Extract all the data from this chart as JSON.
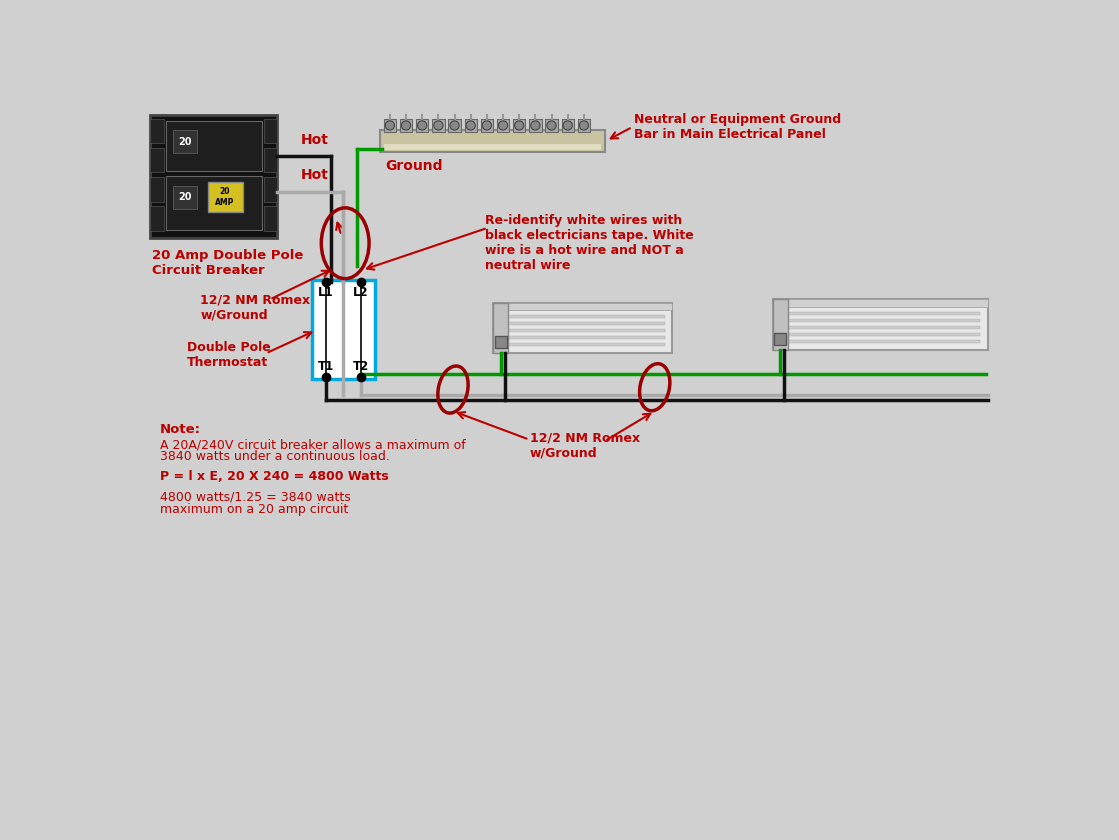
{
  "bg_color": "#d0d0d0",
  "text_color": "#bb0000",
  "wire_black": "#111111",
  "wire_green": "#009900",
  "wire_white": "#c0c0c0",
  "wire_gray": "#aaaaaa",
  "thermostat_fill": "#ffffff",
  "thermostat_edge": "#00aadd",
  "label_breaker": "20 Amp Double Pole\nCircuit Breaker",
  "label_romex1": "12/2 NM Romex\nw/Ground",
  "label_romex2": "12/2 NM Romex\nw/Ground",
  "label_thermostat": "Double Pole\nThermostat",
  "label_hot1": "Hot",
  "label_hot2": "Hot",
  "label_ground": "Ground",
  "label_neutral": "Neutral or Equipment Ground\nBar in Main Electrical Panel",
  "label_reidentify": "Re-identify white wires with\nblack electricians tape. White\nwire is a hot wire and NOT a\nneutral wire",
  "note_title": "Note:",
  "note_line1": "A 20A/240V circuit breaker allows a maximum of",
  "note_line2": "3840 watts under a continuous load.",
  "note_line3": "P = l x E, 20 X 240 = 4800 Watts",
  "note_line4": "4800 watts/1.25 = 3840 watts",
  "note_line5": "maximum on a 20 amp circuit"
}
